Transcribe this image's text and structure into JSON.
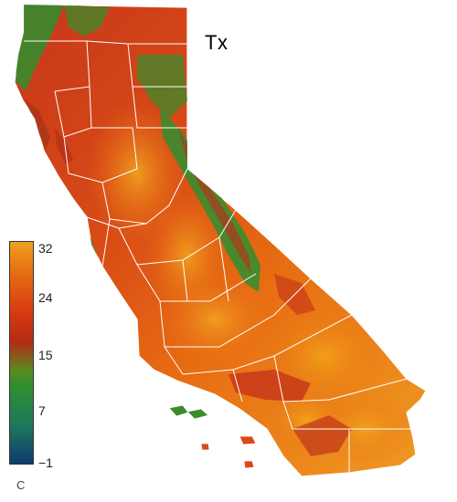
{
  "map": {
    "title": "Tx",
    "legend": {
      "unit": "C",
      "ticks": [
        "32",
        "24",
        "15",
        "7",
        "−1"
      ],
      "tick_values": [
        32,
        24,
        15,
        7,
        -1
      ],
      "range": [
        -1,
        32
      ]
    }
  },
  "colors": {
    "cold": "#0d3c6e",
    "cool": "#2f8f2f",
    "mild": "#b42b16",
    "warm": "#e66a12",
    "hot": "#f0a020",
    "boundary": "#ffffff"
  }
}
